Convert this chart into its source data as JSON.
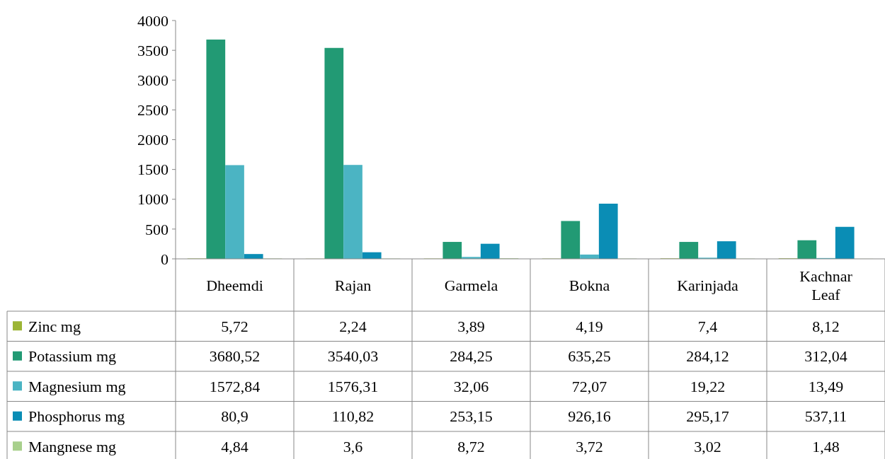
{
  "chart_data": {
    "type": "bar",
    "categories": [
      "Dheemdi",
      "Rajan",
      "Garmela",
      "Bokna",
      "Karinjada",
      "Kachnar Leaf"
    ],
    "series": [
      {
        "name": "Zinc mg",
        "color": "#9cb535",
        "values": [
          5.72,
          2.24,
          3.89,
          4.19,
          7.4,
          8.12
        ],
        "value_labels": [
          "5,72",
          "2,24",
          "3,89",
          "4,19",
          "7,4",
          "8,12"
        ]
      },
      {
        "name": "Potassium mg",
        "color": "#229a74",
        "values": [
          3680.52,
          3540.03,
          284.25,
          635.25,
          284.12,
          312.04
        ],
        "value_labels": [
          "3680,52",
          "3540,03",
          "284,25",
          "635,25",
          "284,12",
          "312,04"
        ]
      },
      {
        "name": "Magnesium mg",
        "color": "#4bb4c3",
        "values": [
          1572.84,
          1576.31,
          32.06,
          72.07,
          19.22,
          13.49
        ],
        "value_labels": [
          "1572,84",
          "1576,31",
          "32,06",
          "72,07",
          "19,22",
          "13,49"
        ]
      },
      {
        "name": "Phosphorus mg",
        "color": "#0a8db5",
        "values": [
          80.9,
          110.82,
          253.15,
          926.16,
          295.17,
          537.11
        ],
        "value_labels": [
          "80,9",
          "110,82",
          "253,15",
          "926,16",
          "295,17",
          "537,11"
        ]
      },
      {
        "name": "Mangnese mg",
        "color": "#a8d08c",
        "values": [
          4.84,
          3.6,
          8.72,
          3.72,
          3.02,
          1.48
        ],
        "value_labels": [
          "4,84",
          "3,6",
          "8,72",
          "3,72",
          "3,02",
          "1,48"
        ]
      }
    ],
    "ylim": [
      0,
      4000
    ],
    "yticks": [
      0,
      500,
      1000,
      1500,
      2000,
      2500,
      3000,
      3500,
      4000
    ],
    "grid": false,
    "legend": "bottom"
  }
}
